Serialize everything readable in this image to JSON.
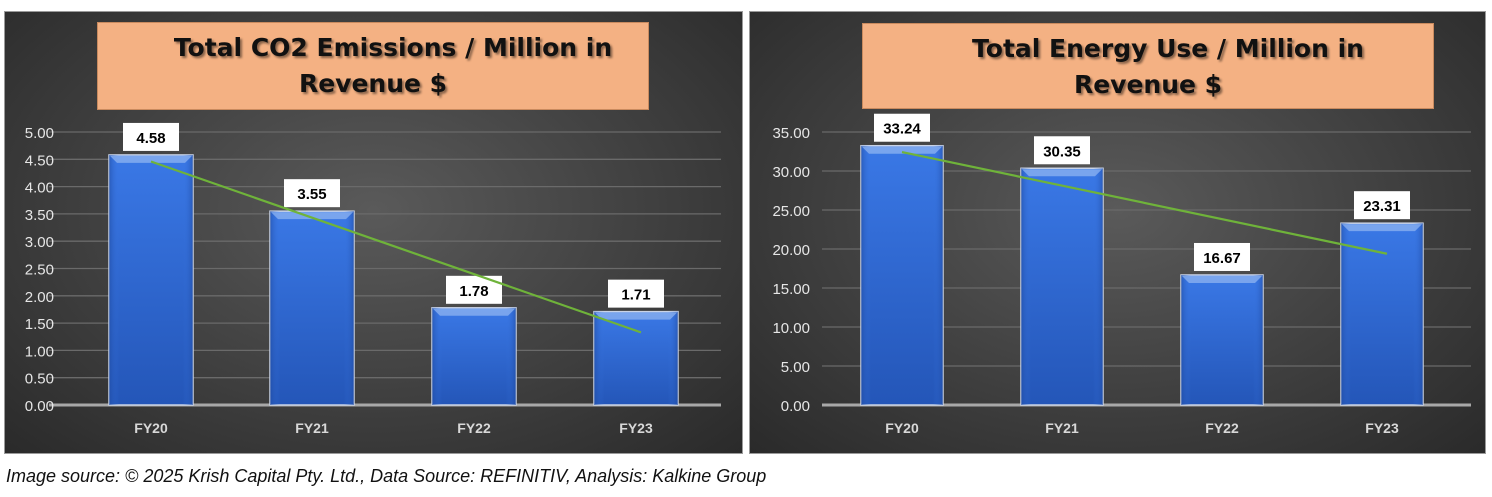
{
  "colors": {
    "bar": "#2f6ad6",
    "bar_border": "#c9d3e6",
    "trendline": "#6fb33a",
    "title_bg": "#f4b183",
    "grid": "#6a6a6a",
    "axis_text": "#e6e6e6"
  },
  "chart_data": [
    {
      "type": "bar",
      "title_line1": "Total CO2 Emissions / Million in",
      "title_line2": "Revenue $",
      "categories": [
        "FY20",
        "FY21",
        "FY22",
        "FY23"
      ],
      "values": [
        4.58,
        3.55,
        1.78,
        1.71
      ],
      "value_labels": [
        "4.58",
        "3.55",
        "1.78",
        "1.71"
      ],
      "yticks": [
        "0.00",
        "0.50",
        "1.00",
        "1.50",
        "2.00",
        "2.50",
        "3.00",
        "3.50",
        "4.00",
        "4.50",
        "5.00"
      ],
      "ylim": [
        0,
        5
      ],
      "trendline": {
        "type": "linear",
        "start": 4.46,
        "end": 1.33
      },
      "grid": true,
      "legend": "none"
    },
    {
      "type": "bar",
      "title_line1": "Total Energy Use / Million in",
      "title_line2": "Revenue $",
      "categories": [
        "FY20",
        "FY21",
        "FY22",
        "FY23"
      ],
      "values": [
        33.24,
        30.35,
        16.67,
        23.31
      ],
      "value_labels": [
        "33.24",
        "30.35",
        "16.67",
        "23.31"
      ],
      "yticks": [
        "0.00",
        "5.00",
        "10.00",
        "15.00",
        "20.00",
        "25.00",
        "30.00",
        "35.00"
      ],
      "ylim": [
        0,
        35
      ],
      "trendline": {
        "type": "linear",
        "start": 32.43,
        "end": 19.39
      },
      "grid": true,
      "legend": "none"
    }
  ],
  "footer": {
    "caption": "Image source: © 2025 Krish Capital Pty. Ltd., Data Source: REFINITIV, Analysis: Kalkine Group"
  }
}
